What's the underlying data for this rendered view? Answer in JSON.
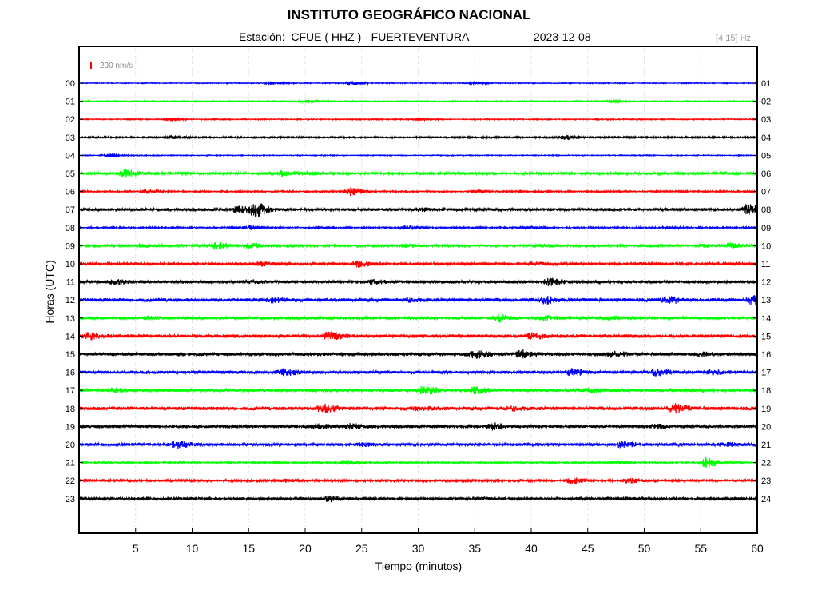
{
  "header": {
    "title": "INSTITUTO GEOGRÁFICO NACIONAL",
    "subtitle": "Estación:  CFUE ( HHZ ) - FUERTEVENTURA",
    "date": "2023-12-08",
    "band": "[4 15] Hz"
  },
  "chart_data": {
    "type": "line",
    "title": "INSTITUTO GEOGRÁFICO NACIONAL",
    "xlabel": "Tiempo (minutos)",
    "ylabel": "Horas (UTC)",
    "xlim": [
      0,
      60
    ],
    "x_ticks": [
      5,
      10,
      15,
      20,
      25,
      30,
      35,
      40,
      45,
      50,
      55,
      60
    ],
    "left_hour_labels": [
      "00",
      "01",
      "02",
      "03",
      "04",
      "05",
      "06",
      "07",
      "08",
      "09",
      "10",
      "11",
      "12",
      "13",
      "14",
      "15",
      "16",
      "17",
      "18",
      "19",
      "20",
      "21",
      "22",
      "23"
    ],
    "right_hour_labels": [
      "01",
      "02",
      "03",
      "04",
      "05",
      "06",
      "07",
      "08",
      "09",
      "10",
      "11",
      "12",
      "13",
      "14",
      "15",
      "16",
      "17",
      "18",
      "19",
      "20",
      "21",
      "22",
      "23",
      "24"
    ],
    "scale_label": "200 nm/s",
    "scale_color": "#ff0000",
    "trace_colors": [
      "#0000ff",
      "#00ff00",
      "#ff0000",
      "#000000"
    ],
    "grid": true,
    "traces": [
      {
        "base": 0.5,
        "events": [
          [
            17,
            1.5
          ],
          [
            24,
            2.2
          ],
          [
            35,
            1.2
          ]
        ]
      },
      {
        "base": 0.6,
        "events": [
          [
            20,
            1.0
          ],
          [
            47,
            1.0
          ]
        ]
      },
      {
        "base": 0.6,
        "events": [
          [
            8,
            2.0
          ],
          [
            30,
            0.8
          ]
        ]
      },
      {
        "base": 0.9,
        "events": [
          [
            8,
            1.5
          ],
          [
            43,
            2.5
          ]
        ]
      },
      {
        "base": 0.5,
        "events": [
          [
            2.5,
            2.0
          ]
        ]
      },
      {
        "base": 1.3,
        "events": [
          [
            4,
            4.5
          ],
          [
            18,
            3.0
          ],
          [
            20,
            1.8
          ]
        ]
      },
      {
        "base": 0.9,
        "events": [
          [
            6,
            2.0
          ],
          [
            24,
            4.5
          ],
          [
            35,
            1.0
          ]
        ]
      },
      {
        "base": 1.6,
        "events": [
          [
            14,
            3.5
          ],
          [
            15.5,
            7.5
          ],
          [
            30,
            1.3
          ],
          [
            59,
            5.5
          ]
        ]
      },
      {
        "base": 0.9,
        "events": [
          [
            15,
            2.0
          ],
          [
            29,
            2.2
          ],
          [
            40,
            1.5
          ],
          [
            52,
            1.0
          ]
        ]
      },
      {
        "base": 1.2,
        "events": [
          [
            5.5,
            2.0
          ],
          [
            12,
            4.0
          ],
          [
            15,
            3.0
          ],
          [
            29,
            2.0
          ],
          [
            41,
            1.5
          ],
          [
            55,
            1.5
          ],
          [
            57.5,
            2.5
          ]
        ]
      },
      {
        "base": 1.3,
        "events": [
          [
            16,
            2.2
          ],
          [
            24.5,
            4.0
          ],
          [
            40,
            2.0
          ],
          [
            50,
            1.5
          ]
        ]
      },
      {
        "base": 1.8,
        "events": [
          [
            3,
            2.5
          ],
          [
            15,
            1.8
          ],
          [
            26,
            1.5
          ],
          [
            41.5,
            3.5
          ]
        ]
      },
      {
        "base": 2.0,
        "events": [
          [
            17,
            2.0
          ],
          [
            29,
            1.5
          ],
          [
            41,
            4.0
          ],
          [
            52,
            3.5
          ],
          [
            59.5,
            5.0
          ]
        ]
      },
      {
        "base": 1.6,
        "events": [
          [
            6,
            1.5
          ],
          [
            37,
            4.0
          ],
          [
            41,
            2.5
          ],
          [
            47,
            1.5
          ]
        ]
      },
      {
        "base": 2.0,
        "events": [
          [
            0.8,
            3.0
          ],
          [
            22,
            4.0
          ],
          [
            40,
            3.0
          ]
        ]
      },
      {
        "base": 1.8,
        "events": [
          [
            35,
            4.0
          ],
          [
            39,
            4.5
          ],
          [
            47,
            3.5
          ],
          [
            55,
            1.5
          ]
        ]
      },
      {
        "base": 1.8,
        "events": [
          [
            18,
            3.5
          ],
          [
            43.5,
            3.5
          ],
          [
            51,
            3.5
          ],
          [
            56,
            2.0
          ]
        ]
      },
      {
        "base": 1.8,
        "events": [
          [
            3,
            2.0
          ],
          [
            30.5,
            4.5
          ],
          [
            35,
            3.0
          ],
          [
            45,
            2.0
          ]
        ]
      },
      {
        "base": 2.0,
        "events": [
          [
            21.5,
            4.5
          ],
          [
            30,
            2.0
          ],
          [
            38,
            2.0
          ],
          [
            52.5,
            4.5
          ]
        ]
      },
      {
        "base": 1.6,
        "events": [
          [
            21,
            2.5
          ],
          [
            24,
            2.5
          ],
          [
            36.5,
            3.5
          ],
          [
            51,
            2.5
          ]
        ]
      },
      {
        "base": 1.6,
        "events": [
          [
            8.5,
            4.0
          ],
          [
            25,
            1.5
          ],
          [
            48,
            3.5
          ],
          [
            57,
            1.5
          ]
        ]
      },
      {
        "base": 1.0,
        "events": [
          [
            23.5,
            3.0
          ],
          [
            47.5,
            1.5
          ],
          [
            55.5,
            6.0
          ]
        ]
      },
      {
        "base": 1.2,
        "events": [
          [
            18,
            1.5
          ],
          [
            43.5,
            3.5
          ],
          [
            48.5,
            2.5
          ]
        ]
      },
      {
        "base": 1.4,
        "events": [
          [
            22,
            3.0
          ],
          [
            35,
            1.2
          ],
          [
            48,
            1.2
          ]
        ]
      }
    ]
  }
}
